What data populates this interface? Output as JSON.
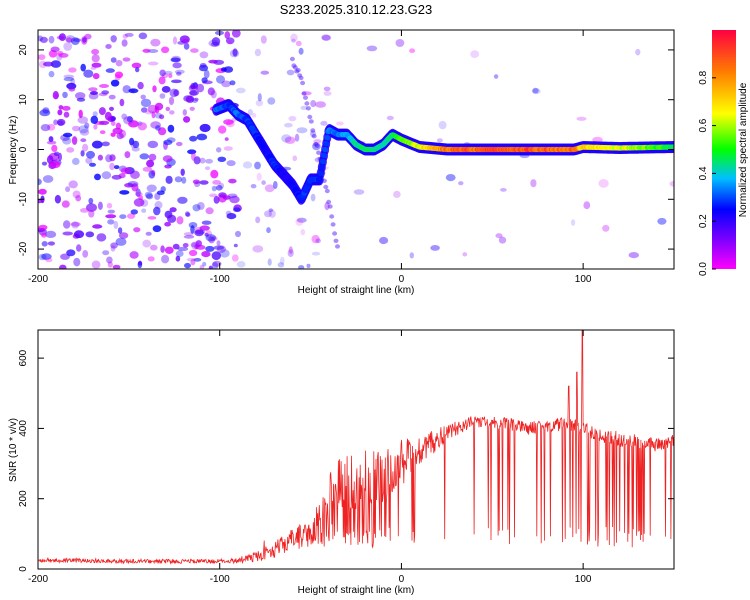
{
  "chart_data": [
    {
      "type": "heatmap",
      "title": "S233.2025.310.12.23.G23",
      "xlabel": "Height of straight line (km)",
      "ylabel": "Frequency (Hz)",
      "xlim": [
        -200,
        150
      ],
      "ylim": [
        -24,
        24
      ],
      "xticks": [
        -200,
        -100,
        0,
        100
      ],
      "xtick_labels": [
        "-200",
        "-100",
        "0",
        "100"
      ],
      "yticks": [
        -20,
        -10,
        0,
        10,
        20
      ],
      "ytick_labels": [
        "-20",
        "-10",
        "0",
        "10",
        "20"
      ],
      "colorbar": {
        "label": "Normalized spectral amplitude",
        "range": [
          0,
          1
        ],
        "ticks": [
          0.0,
          0.2,
          0.4,
          0.6,
          0.8
        ],
        "tick_labels": [
          "0.0",
          "0.2",
          "0.4",
          "0.6",
          "0.8"
        ]
      },
      "ridge": {
        "x": [
          -102,
          -95,
          -90,
          -85,
          -80,
          -75,
          -70,
          -65,
          -60,
          -55,
          -50,
          -45,
          -40,
          -35,
          -30,
          -25,
          -20,
          -15,
          -10,
          -5,
          0,
          10,
          25,
          50,
          75,
          95,
          100,
          120,
          150
        ],
        "y": [
          8,
          9,
          7,
          6,
          3,
          0,
          -3,
          -5,
          -7,
          -10,
          -6,
          -6,
          4,
          3,
          3,
          1,
          0,
          0,
          1,
          3,
          2,
          0.5,
          0,
          0,
          0,
          0,
          0.5,
          0.3,
          0.5
        ],
        "amplitude": [
          0.35,
          0.3,
          0.35,
          0.3,
          0.3,
          0.25,
          0.3,
          0.25,
          0.25,
          0.3,
          0.3,
          0.3,
          0.35,
          0.35,
          0.4,
          0.45,
          0.5,
          0.5,
          0.45,
          0.5,
          0.55,
          0.7,
          0.9,
          0.95,
          0.95,
          0.9,
          0.75,
          0.7,
          0.5
        ]
      },
      "secondary_ridge": {
        "x": [
          -60,
          -55,
          -50,
          -45,
          -40,
          -35
        ],
        "y": [
          18,
          14,
          6,
          -2,
          -10,
          -20
        ]
      }
    },
    {
      "type": "line",
      "xlabel": "Height of straight line (km)",
      "ylabel": "SNR (10 * v/v)",
      "xlim": [
        -200,
        150
      ],
      "ylim": [
        0,
        680
      ],
      "xticks": [
        -200,
        -100,
        0,
        100
      ],
      "xtick_labels": [
        "-200",
        "-100",
        "0",
        "100"
      ],
      "yticks": [
        0,
        200,
        400,
        600
      ],
      "ytick_labels": [
        "0",
        "200",
        "400",
        "600"
      ],
      "color": "#ee2222",
      "series": [
        {
          "name": "SNR",
          "x": [
            -200,
            -175,
            -150,
            -125,
            -100,
            -90,
            -80,
            -70,
            -60,
            -50,
            -40,
            -30,
            -20,
            -10,
            0,
            10,
            20,
            30,
            40,
            50,
            60,
            70,
            80,
            90,
            100,
            110,
            120,
            130,
            140,
            150
          ],
          "values": [
            25,
            24,
            22,
            22,
            22,
            25,
            35,
            55,
            85,
            100,
            190,
            260,
            250,
            255,
            300,
            330,
            370,
            400,
            420,
            420,
            410,
            400,
            410,
            410,
            400,
            380,
            370,
            360,
            355,
            360
          ],
          "noise": [
            6,
            6,
            6,
            6,
            6,
            8,
            14,
            22,
            30,
            40,
            80,
            90,
            90,
            80,
            70,
            50,
            30,
            20,
            18,
            18,
            18,
            18,
            20,
            20,
            22,
            20,
            22,
            22,
            22,
            22
          ],
          "dropout_rate": [
            0,
            0,
            0,
            0,
            0,
            0,
            0,
            0.05,
            0.1,
            0.2,
            0.3,
            0.3,
            0.3,
            0.25,
            0.1,
            0.05,
            0.02,
            0.02,
            0.02,
            0.08,
            0.12,
            0.12,
            0.12,
            0.12,
            0.14,
            0.14,
            0.14,
            0.14,
            0.14,
            0.14
          ],
          "spikes": [
            {
              "x": 99.5,
              "value": 680
            },
            {
              "x": 96.5,
              "value": 560
            },
            {
              "x": 92,
              "value": 520
            }
          ]
        }
      ]
    }
  ]
}
